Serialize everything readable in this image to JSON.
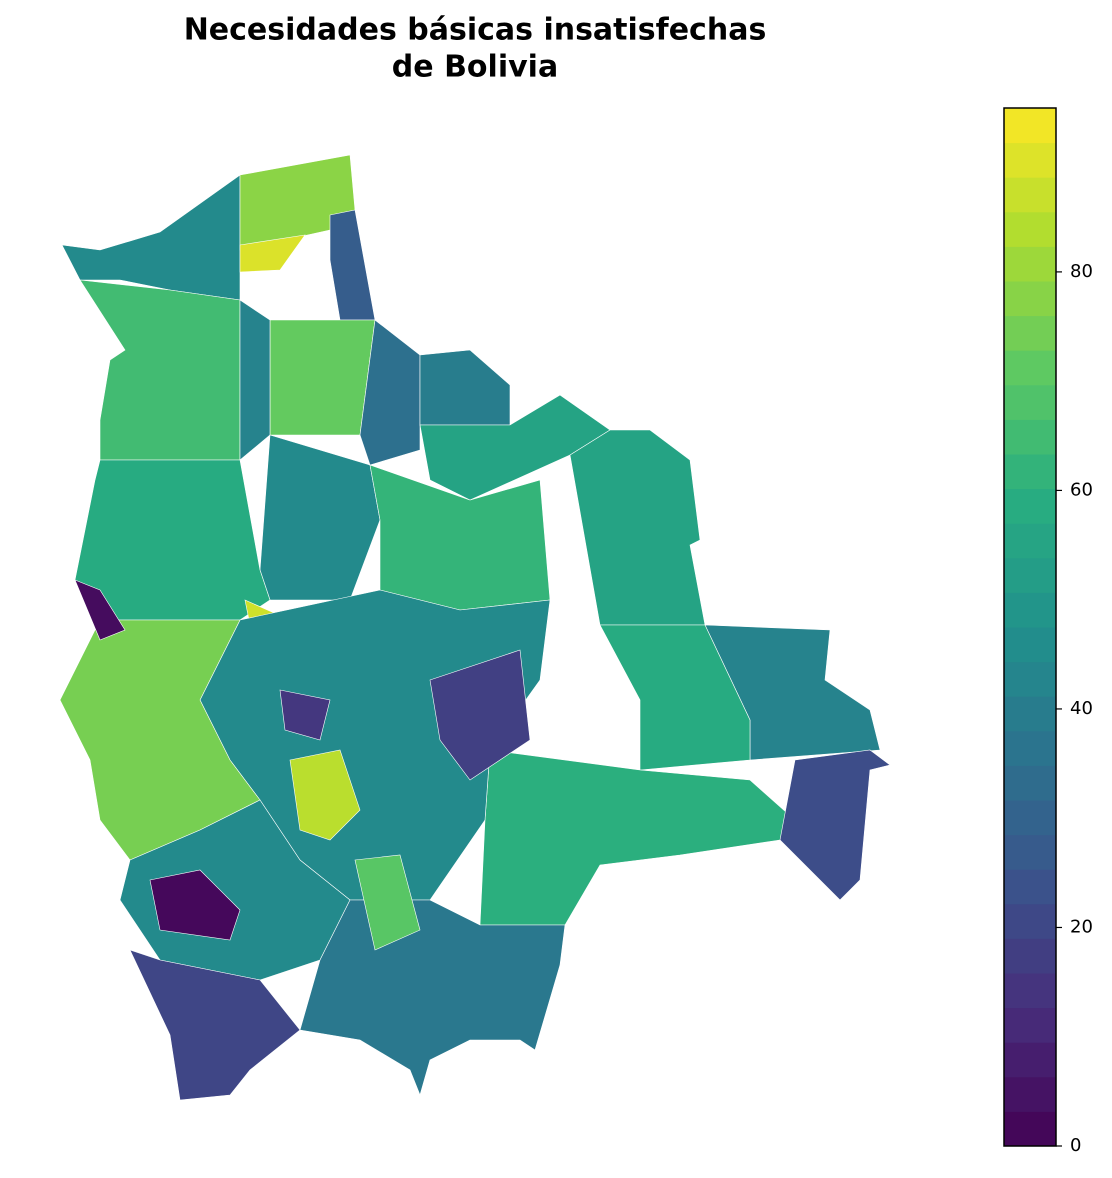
{
  "chart_data": {
    "type": "choropleth",
    "title": [
      "Necesidades básicas insatisfechas",
      "de Bolivia"
    ],
    "colormap": "viridis",
    "values": [
      45,
      78,
      90,
      28,
      65,
      72,
      42,
      35,
      40,
      55,
      55,
      45,
      62,
      58,
      88,
      42,
      58,
      60,
      22,
      45,
      75,
      45,
      2,
      20,
      38,
      18,
      85,
      3,
      15,
      70
    ],
    "clim": [
      0,
      95
    ],
    "cticks": [
      0,
      20,
      40,
      60,
      80
    ]
  }
}
